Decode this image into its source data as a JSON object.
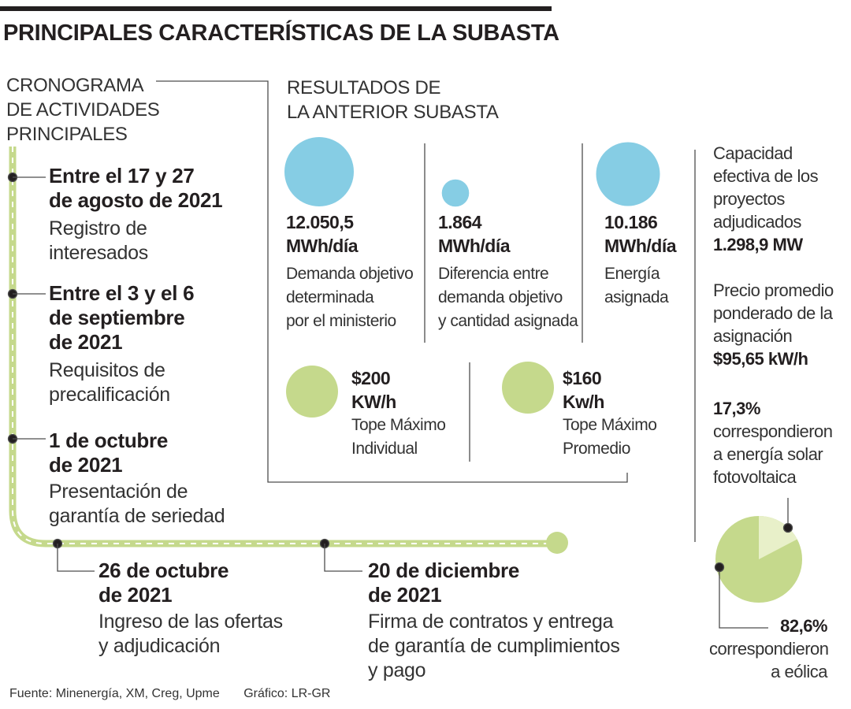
{
  "title": "PRINCIPALES CARACTERÍSTICAS DE LA SUBASTA",
  "timeline": {
    "heading": [
      "CRONOGRAMA",
      "DE ACTIVIDADES",
      "PRINCIPALES"
    ],
    "events": [
      {
        "date": [
          "Entre el 17 y 27",
          "de agosto de 2021"
        ],
        "desc": [
          "Registro de",
          "interesados"
        ]
      },
      {
        "date": [
          "Entre el 3 y el 6",
          "de septiembre",
          "de 2021"
        ],
        "desc": [
          "Requisitos de",
          "precalificación"
        ]
      },
      {
        "date": [
          "1 de octubre",
          "de 2021"
        ],
        "desc": [
          "Presentación de",
          "garantía de seriedad"
        ]
      },
      {
        "date": [
          "26 de octubre",
          "de 2021"
        ],
        "desc": [
          "Ingreso de las ofertas",
          "y adjudicación"
        ]
      },
      {
        "date": [
          "20 de diciembre",
          "de 2021"
        ],
        "desc": [
          "Firma de contratos y entrega",
          "de garantía de cumplimientos",
          "y pago"
        ]
      }
    ]
  },
  "results": {
    "heading": [
      "RESULTADOS DE",
      "LA ANTERIOR SUBASTA"
    ],
    "energy": [
      {
        "value": "12.050,5",
        "unit": "MWh/día",
        "label": [
          "Demanda objetivo",
          "determinada",
          "por el ministerio"
        ],
        "amount": 12050.5
      },
      {
        "value": "1.864",
        "unit": "MWh/día",
        "label": [
          "Diferencia entre",
          "demanda objetivo",
          "y cantidad asignada"
        ],
        "amount": 1864
      },
      {
        "value": "10.186",
        "unit": "MWh/día",
        "label": [
          "Energía",
          "asignada"
        ],
        "amount": 10186
      }
    ],
    "prices": [
      {
        "value": "$200",
        "unit": "KW/h",
        "label": [
          "Tope Máximo",
          "Individual"
        ],
        "amount": 200
      },
      {
        "value": "$160",
        "unit": "Kw/h",
        "label": [
          "Tope Máximo",
          "Promedio"
        ],
        "amount": 160
      }
    ]
  },
  "sidebar": {
    "capacity": {
      "label": [
        "Capacidad",
        "efectiva de los",
        "proyectos",
        "adjudicados"
      ],
      "value": "1.298,9 MW"
    },
    "price": {
      "label": [
        "Precio promedio",
        "ponderado de la",
        "asignación"
      ],
      "value": "$95,65 kW/h"
    },
    "solar": {
      "pct": "17,3%",
      "label": [
        "correspondieron",
        "a energía solar",
        "fotovoltaica"
      ]
    },
    "wind": {
      "pct": "82,6%",
      "label": [
        "correspondieron",
        "a eólica"
      ]
    }
  },
  "chart_data": {
    "type": "pie",
    "categories": [
      "Energía solar fotovoltaica",
      "Eólica"
    ],
    "values": [
      17.3,
      82.6
    ],
    "title": ""
  },
  "footer": {
    "source": "Fuente: Minenergía, XM, Creg, Upme",
    "credit": "Gráfico: LR-GR"
  },
  "colors": {
    "blue": "#86cde4",
    "green": "#c5d98c",
    "green_light": "#e8f0c9",
    "ink": "#231f20",
    "line": "#4d4d4d"
  }
}
